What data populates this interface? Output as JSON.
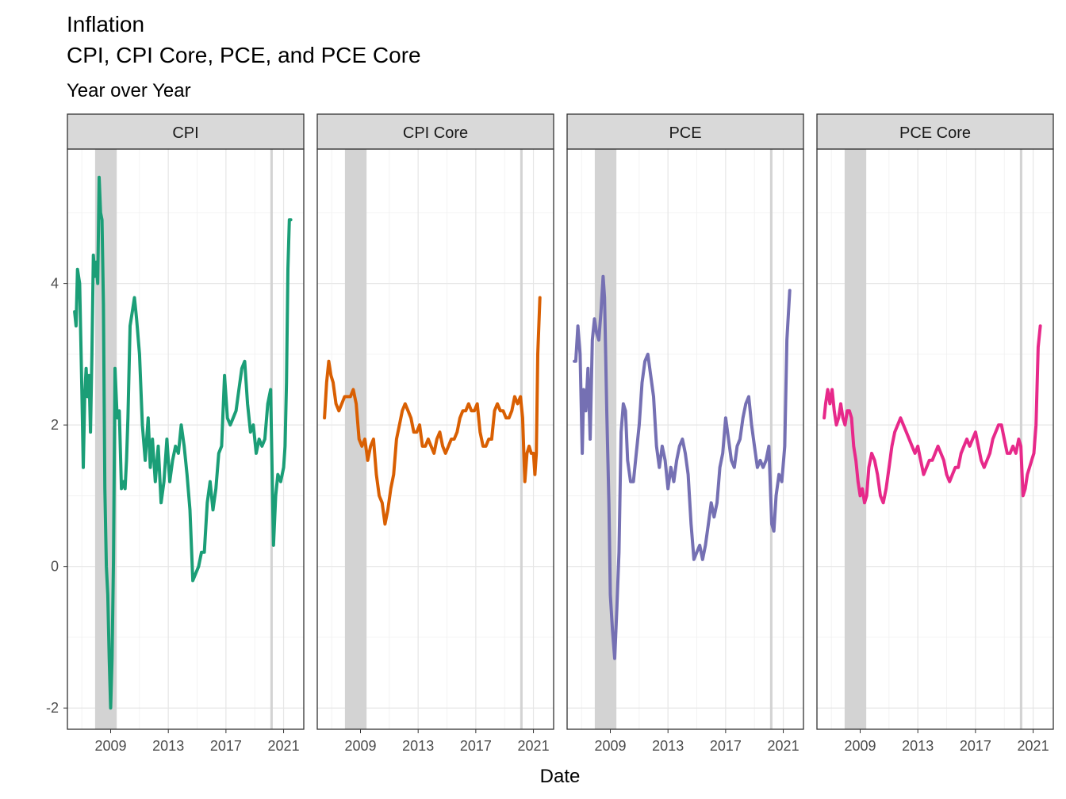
{
  "chart_data": {
    "type": "line",
    "title": "Inflation",
    "subtitle_line": "CPI, CPI Core, PCE, and PCE Core",
    "subtitle": "Year over Year",
    "xlabel": "Date",
    "ylabel": "",
    "xlim": [
      2006.0,
      2022.4
    ],
    "ylim": [
      -2.3,
      5.9
    ],
    "x_ticks": [
      2009,
      2013,
      2017,
      2021
    ],
    "y_ticks": [
      -2,
      0,
      2,
      4
    ],
    "grid": true,
    "facets": "horizontal, 4 panels",
    "recessions": [
      [
        2007.92,
        2009.42
      ],
      [
        2020.08,
        2020.25
      ]
    ],
    "colors": {
      "CPI": "#1b9e77",
      "CPI Core": "#d95f02",
      "PCE": "#7570b3",
      "PCE Core": "#e7298a",
      "recession": "#d3d3d3",
      "strip": "#d9d9d9"
    },
    "series": [
      {
        "name": "CPI",
        "x": [
          2006.5,
          2006.6,
          2006.7,
          2006.85,
          2007.0,
          2007.1,
          2007.2,
          2007.3,
          2007.4,
          2007.5,
          2007.6,
          2007.7,
          2007.8,
          2007.9,
          2008.0,
          2008.1,
          2008.2,
          2008.3,
          2008.4,
          2008.5,
          2008.6,
          2008.7,
          2008.8,
          2008.9,
          2009.0,
          2009.1,
          2009.2,
          2009.3,
          2009.45,
          2009.6,
          2009.75,
          2009.9,
          2010.0,
          2010.1,
          2010.2,
          2010.35,
          2010.5,
          2010.65,
          2010.8,
          2011.0,
          2011.2,
          2011.4,
          2011.6,
          2011.75,
          2011.9,
          2012.1,
          2012.3,
          2012.5,
          2012.7,
          2012.9,
          2013.1,
          2013.3,
          2013.5,
          2013.7,
          2013.9,
          2014.1,
          2014.3,
          2014.5,
          2014.7,
          2014.9,
          2015.1,
          2015.3,
          2015.5,
          2015.7,
          2015.9,
          2016.1,
          2016.3,
          2016.5,
          2016.7,
          2016.9,
          2017.1,
          2017.3,
          2017.5,
          2017.7,
          2017.9,
          2018.1,
          2018.3,
          2018.5,
          2018.7,
          2018.9,
          2019.1,
          2019.3,
          2019.5,
          2019.7,
          2019.9,
          2020.1,
          2020.3,
          2020.45,
          2020.6,
          2020.8,
          2021.0,
          2021.1,
          2021.2,
          2021.3,
          2021.4,
          2021.5
        ],
        "values": [
          3.6,
          3.4,
          4.2,
          4.0,
          2.5,
          1.4,
          2.4,
          2.8,
          2.4,
          2.7,
          1.9,
          3.0,
          4.4,
          4.1,
          4.3,
          4.0,
          5.5,
          5.0,
          4.9,
          3.7,
          1.1,
          0.0,
          -0.4,
          -1.3,
          -2.0,
          -1.3,
          0.1,
          2.8,
          2.1,
          2.2,
          1.1,
          1.2,
          1.1,
          1.5,
          2.1,
          3.4,
          3.6,
          3.8,
          3.5,
          3.0,
          2.0,
          1.5,
          2.1,
          1.4,
          1.8,
          1.2,
          1.7,
          0.9,
          1.2,
          1.8,
          1.2,
          1.5,
          1.7,
          1.6,
          2.0,
          1.7,
          1.3,
          0.8,
          -0.2,
          -0.1,
          0.0,
          0.2,
          0.2,
          0.9,
          1.2,
          0.8,
          1.1,
          1.6,
          1.7,
          2.7,
          2.1,
          2.0,
          2.1,
          2.2,
          2.5,
          2.8,
          2.9,
          2.3,
          1.9,
          2.0,
          1.6,
          1.8,
          1.7,
          1.8,
          2.3,
          2.5,
          0.3,
          1.0,
          1.3,
          1.2,
          1.4,
          1.7,
          2.6,
          4.2,
          4.9,
          4.9
        ]
      },
      {
        "name": "CPI Core",
        "x": [
          2006.5,
          2006.65,
          2006.8,
          2006.95,
          2007.1,
          2007.3,
          2007.5,
          2007.7,
          2007.9,
          2008.1,
          2008.3,
          2008.5,
          2008.7,
          2008.9,
          2009.1,
          2009.3,
          2009.5,
          2009.7,
          2009.9,
          2010.1,
          2010.3,
          2010.5,
          2010.7,
          2010.9,
          2011.1,
          2011.3,
          2011.5,
          2011.7,
          2011.9,
          2012.1,
          2012.3,
          2012.5,
          2012.7,
          2012.9,
          2013.1,
          2013.3,
          2013.5,
          2013.7,
          2013.9,
          2014.1,
          2014.3,
          2014.5,
          2014.7,
          2014.9,
          2015.1,
          2015.3,
          2015.5,
          2015.7,
          2015.9,
          2016.1,
          2016.3,
          2016.5,
          2016.7,
          2016.9,
          2017.1,
          2017.3,
          2017.5,
          2017.7,
          2017.9,
          2018.1,
          2018.3,
          2018.5,
          2018.7,
          2018.9,
          2019.1,
          2019.3,
          2019.5,
          2019.7,
          2019.9,
          2020.1,
          2020.25,
          2020.4,
          2020.55,
          2020.7,
          2020.85,
          2021.0,
          2021.1,
          2021.2,
          2021.3,
          2021.45
        ],
        "values": [
          2.1,
          2.6,
          2.9,
          2.7,
          2.6,
          2.3,
          2.2,
          2.3,
          2.4,
          2.4,
          2.4,
          2.5,
          2.3,
          1.8,
          1.7,
          1.8,
          1.5,
          1.7,
          1.8,
          1.3,
          1.0,
          0.9,
          0.6,
          0.8,
          1.1,
          1.3,
          1.8,
          2.0,
          2.2,
          2.3,
          2.2,
          2.1,
          1.9,
          1.9,
          2.0,
          1.7,
          1.7,
          1.8,
          1.7,
          1.6,
          1.8,
          1.9,
          1.7,
          1.6,
          1.7,
          1.8,
          1.8,
          1.9,
          2.1,
          2.2,
          2.2,
          2.3,
          2.2,
          2.2,
          2.3,
          1.9,
          1.7,
          1.7,
          1.8,
          1.8,
          2.2,
          2.3,
          2.2,
          2.2,
          2.1,
          2.1,
          2.2,
          2.4,
          2.3,
          2.4,
          2.1,
          1.2,
          1.6,
          1.7,
          1.6,
          1.6,
          1.3,
          1.6,
          3.0,
          3.8
        ]
      },
      {
        "name": "PCE",
        "x": [
          2006.5,
          2006.6,
          2006.75,
          2006.9,
          2007.05,
          2007.15,
          2007.3,
          2007.45,
          2007.6,
          2007.75,
          2007.9,
          2008.05,
          2008.2,
          2008.35,
          2008.5,
          2008.6,
          2008.75,
          2008.9,
          2009.0,
          2009.15,
          2009.3,
          2009.45,
          2009.6,
          2009.75,
          2009.9,
          2010.05,
          2010.2,
          2010.4,
          2010.6,
          2010.8,
          2011.0,
          2011.2,
          2011.4,
          2011.6,
          2011.8,
          2012.0,
          2012.2,
          2012.4,
          2012.6,
          2012.8,
          2013.0,
          2013.2,
          2013.4,
          2013.6,
          2013.8,
          2014.0,
          2014.2,
          2014.4,
          2014.6,
          2014.8,
          2015.0,
          2015.2,
          2015.4,
          2015.6,
          2015.8,
          2016.0,
          2016.2,
          2016.4,
          2016.6,
          2016.8,
          2017.0,
          2017.2,
          2017.4,
          2017.6,
          2017.8,
          2018.0,
          2018.2,
          2018.4,
          2018.6,
          2018.8,
          2019.0,
          2019.2,
          2019.4,
          2019.6,
          2019.8,
          2020.0,
          2020.2,
          2020.35,
          2020.5,
          2020.7,
          2020.9,
          2021.1,
          2021.25,
          2021.45
        ],
        "values": [
          2.9,
          2.9,
          3.4,
          3.0,
          1.6,
          2.5,
          2.2,
          2.8,
          1.8,
          3.2,
          3.5,
          3.3,
          3.2,
          3.6,
          4.1,
          3.8,
          2.2,
          0.9,
          -0.4,
          -0.9,
          -1.3,
          -0.6,
          0.2,
          1.9,
          2.3,
          2.2,
          1.5,
          1.2,
          1.2,
          1.6,
          2.0,
          2.6,
          2.9,
          3.0,
          2.7,
          2.4,
          1.7,
          1.4,
          1.7,
          1.5,
          1.1,
          1.4,
          1.2,
          1.5,
          1.7,
          1.8,
          1.6,
          1.3,
          0.6,
          0.1,
          0.2,
          0.3,
          0.1,
          0.3,
          0.6,
          0.9,
          0.7,
          0.9,
          1.4,
          1.6,
          2.1,
          1.8,
          1.5,
          1.4,
          1.7,
          1.8,
          2.1,
          2.3,
          2.4,
          2.0,
          1.7,
          1.4,
          1.5,
          1.4,
          1.5,
          1.7,
          0.6,
          0.5,
          1.0,
          1.3,
          1.2,
          1.7,
          3.2,
          3.9
        ]
      },
      {
        "name": "PCE Core",
        "x": [
          2006.5,
          2006.6,
          2006.75,
          2006.9,
          2007.05,
          2007.2,
          2007.35,
          2007.5,
          2007.65,
          2007.8,
          2007.95,
          2008.1,
          2008.25,
          2008.4,
          2008.55,
          2008.7,
          2008.85,
          2009.0,
          2009.15,
          2009.3,
          2009.45,
          2009.6,
          2009.8,
          2010.0,
          2010.2,
          2010.4,
          2010.6,
          2010.8,
          2011.0,
          2011.2,
          2011.4,
          2011.6,
          2011.8,
          2012.0,
          2012.2,
          2012.4,
          2012.6,
          2012.8,
          2013.0,
          2013.2,
          2013.4,
          2013.6,
          2013.8,
          2014.0,
          2014.2,
          2014.4,
          2014.6,
          2014.8,
          2015.0,
          2015.2,
          2015.4,
          2015.6,
          2015.8,
          2016.0,
          2016.2,
          2016.4,
          2016.6,
          2016.8,
          2017.0,
          2017.2,
          2017.4,
          2017.6,
          2017.8,
          2018.0,
          2018.2,
          2018.4,
          2018.6,
          2018.8,
          2019.0,
          2019.2,
          2019.4,
          2019.6,
          2019.8,
          2020.0,
          2020.15,
          2020.3,
          2020.45,
          2020.6,
          2020.75,
          2020.9,
          2021.05,
          2021.2,
          2021.35,
          2021.5
        ],
        "values": [
          2.1,
          2.3,
          2.5,
          2.3,
          2.5,
          2.2,
          2.0,
          2.1,
          2.3,
          2.1,
          2.0,
          2.2,
          2.2,
          2.1,
          1.7,
          1.5,
          1.2,
          1.0,
          1.1,
          0.9,
          1.0,
          1.4,
          1.6,
          1.5,
          1.3,
          1.0,
          0.9,
          1.1,
          1.4,
          1.7,
          1.9,
          2.0,
          2.1,
          2.0,
          1.9,
          1.8,
          1.7,
          1.6,
          1.7,
          1.5,
          1.3,
          1.4,
          1.5,
          1.5,
          1.6,
          1.7,
          1.6,
          1.5,
          1.3,
          1.2,
          1.3,
          1.4,
          1.4,
          1.6,
          1.7,
          1.8,
          1.7,
          1.8,
          1.9,
          1.7,
          1.5,
          1.4,
          1.5,
          1.6,
          1.8,
          1.9,
          2.0,
          2.0,
          1.8,
          1.6,
          1.6,
          1.7,
          1.6,
          1.8,
          1.7,
          1.0,
          1.1,
          1.3,
          1.4,
          1.5,
          1.6,
          2.0,
          3.1,
          3.4
        ]
      }
    ]
  }
}
